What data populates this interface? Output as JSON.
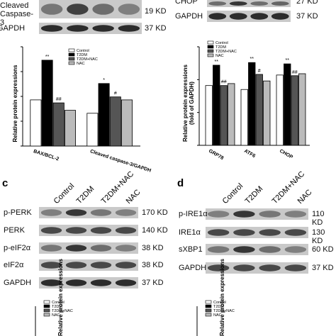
{
  "panel_a": {
    "blot_rows": [
      {
        "label": "Cleaved Caspase-3",
        "size": "19 KD"
      },
      {
        "label": "GAPDH",
        "size": "37 KD"
      }
    ]
  },
  "panel_b": {
    "blot_rows": [
      {
        "label": "CHOP",
        "size": "27 KD"
      },
      {
        "label": "GAPDH",
        "size": "37 KD"
      }
    ]
  },
  "chart_data": [
    {
      "type": "bar",
      "y_label": [
        "Relative protein expressions"
      ],
      "categories": [
        "BAX/BCL-2",
        "Cleaved caspase-3/GAPDH"
      ],
      "ylim": [
        0,
        2
      ],
      "yticks": [
        0,
        0.5,
        1,
        1.5,
        2
      ],
      "series": [
        {
          "name": "Control",
          "color": "#ffffff",
          "values": [
            0.93,
            0.66
          ],
          "markers": [
            null,
            null
          ]
        },
        {
          "name": "T2DM",
          "color": "#000000",
          "values": [
            1.73,
            1.26
          ],
          "markers": [
            "**",
            "*"
          ]
        },
        {
          "name": "T2DM+NAC",
          "color": "#555555",
          "values": [
            0.87,
            0.99
          ],
          "markers": [
            "##",
            "#"
          ]
        },
        {
          "name": "NAC",
          "color": "#bbbbbb",
          "values": [
            0.72,
            0.93
          ],
          "markers": [
            null,
            null
          ]
        }
      ]
    },
    {
      "type": "bar",
      "y_label": [
        "Relative protein expressions",
        "(fold of GAPDH)"
      ],
      "categories": [
        "GRP78",
        "ATF6",
        "CHOP"
      ],
      "ylim": [
        0,
        1.5
      ],
      "yticks": [
        0,
        0.5,
        1,
        1.5
      ],
      "series": [
        {
          "name": "Control",
          "color": "#ffffff",
          "values": [
            0.91,
            0.85,
            1.07
          ],
          "markers": [
            null,
            null,
            null
          ]
        },
        {
          "name": "T2DM",
          "color": "#000000",
          "values": [
            1.22,
            1.26,
            1.24
          ],
          "markers": [
            "**",
            "**",
            "**"
          ]
        },
        {
          "name": "T2DM+NAC",
          "color": "#555555",
          "values": [
            0.91,
            1.08,
            1.06
          ],
          "markers": [
            "##",
            "#",
            "##"
          ]
        },
        {
          "name": "NAC",
          "color": "#bbbbbb",
          "values": [
            0.94,
            0.98,
            1.09
          ],
          "markers": [
            null,
            null,
            null
          ]
        }
      ]
    }
  ],
  "panel_c": {
    "letter": "c",
    "groups": [
      "Control",
      "T2DM",
      "T2DM+NAC",
      "NAC"
    ],
    "blot_rows": [
      {
        "label": "p-PERK",
        "size": "170 KD"
      },
      {
        "label": "PERK",
        "size": "140 KD"
      },
      {
        "label": "p-eIF2α",
        "size": "38 KD"
      },
      {
        "label": "eIF2α",
        "size": "38 KD"
      },
      {
        "label": "GAPDH",
        "size": "37 KD"
      }
    ],
    "legend": [
      "Control",
      "T2DM",
      "T2DM+NAC",
      "NAC"
    ],
    "y_label": "Relative protein expressions"
  },
  "panel_d": {
    "letter": "d",
    "groups": [
      "Control",
      "T2DM",
      "T2DM+NAC",
      "NAC"
    ],
    "blot_rows": [
      {
        "label": "p-IRE1α",
        "size": "110 KD"
      },
      {
        "label": "IRE1α",
        "size": "130 KD"
      },
      {
        "label": "sXBP1",
        "size": "60 KD"
      },
      {
        "label": "GAPDH",
        "size": "37 KD"
      }
    ],
    "legend": [
      "Control",
      "T2DM",
      "T2DM+NAC",
      "NAC"
    ],
    "y_label": "Relative protein expressions"
  }
}
